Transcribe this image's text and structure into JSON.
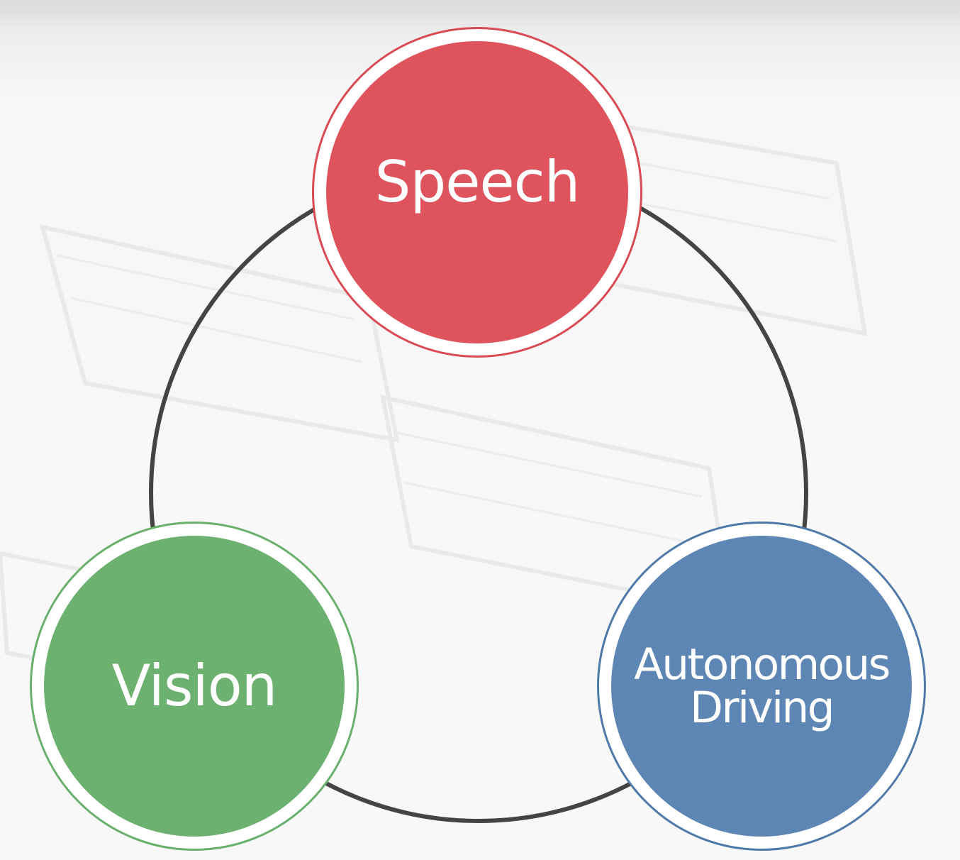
{
  "diagram": {
    "nodes": [
      {
        "id": "speech",
        "label": "Speech",
        "color": "#df535d"
      },
      {
        "id": "vision",
        "label": "Vision",
        "color": "#6db170"
      },
      {
        "id": "driving",
        "label_line1": "Autonomous",
        "label_line2": "Driving",
        "color": "#5d86b4"
      }
    ],
    "ring_color": "#444444",
    "background_color": "#f7f7f7"
  }
}
